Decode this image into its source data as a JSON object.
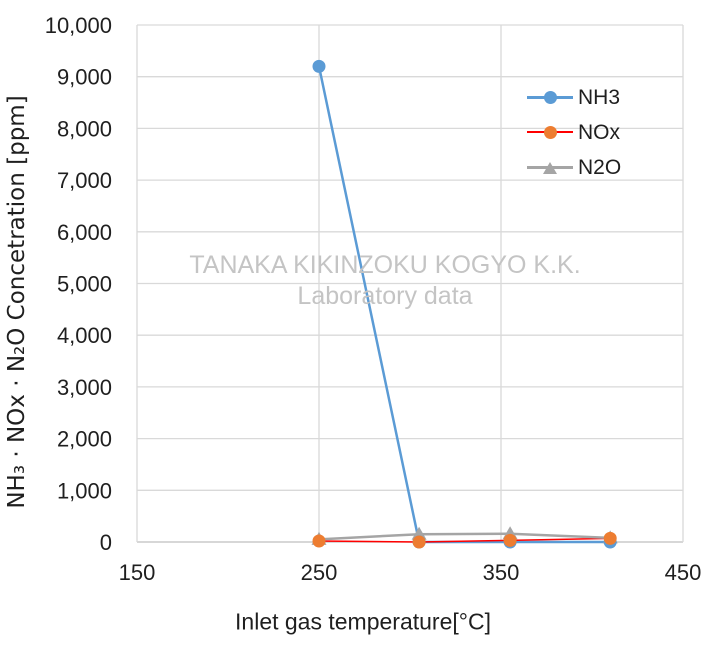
{
  "chart_data": {
    "type": "line",
    "title": "",
    "xlabel": "Inlet gas temperature[°C]",
    "ylabel": "NH₃ · NOx · N₂O Concetration [ppm]",
    "xlim": [
      150,
      450
    ],
    "ylim": [
      0,
      10000
    ],
    "grid": true,
    "legend_position": "inside-top-right",
    "x_ticks": [
      {
        "v": 150,
        "label": "150"
      },
      {
        "v": 250,
        "label": "250"
      },
      {
        "v": 350,
        "label": "350"
      },
      {
        "v": 450,
        "label": "450"
      }
    ],
    "y_ticks": [
      {
        "v": 0,
        "label": "0"
      },
      {
        "v": 1000,
        "label": "1,000"
      },
      {
        "v": 2000,
        "label": "2,000"
      },
      {
        "v": 3000,
        "label": "3,000"
      },
      {
        "v": 4000,
        "label": "4,000"
      },
      {
        "v": 5000,
        "label": "5,000"
      },
      {
        "v": 6000,
        "label": "6,000"
      },
      {
        "v": 7000,
        "label": "7,000"
      },
      {
        "v": 8000,
        "label": "8,000"
      },
      {
        "v": 9000,
        "label": "9,000"
      },
      {
        "v": 10000,
        "label": "10,000"
      }
    ],
    "x": [
      250,
      305,
      355,
      410
    ],
    "series": [
      {
        "name": "NH3",
        "values": [
          9200,
          0,
          0,
          0
        ],
        "marker": "circle",
        "line_color": "#5B9BD5",
        "marker_color": "#5B9BD5",
        "line_width": 2.5
      },
      {
        "name": "NOx",
        "values": [
          20,
          0,
          30,
          70
        ],
        "marker": "circle",
        "line_color": "#FF0000",
        "marker_color": "#ED7D31",
        "line_width": 1.5
      },
      {
        "name": "N2O",
        "values": [
          50,
          150,
          160,
          80
        ],
        "marker": "triangle",
        "line_color": "#A5A5A5",
        "marker_color": "#A5A5A5",
        "line_width": 2.5
      }
    ]
  },
  "watermark": {
    "line1": "TANAKA KIKINZOKU KOGYO K.K.",
    "line2": "Laboratory data"
  },
  "colors": {
    "grid": "#D9D9D9",
    "axis": "#BFBFBF",
    "text": "#1F1F1F",
    "watermark": "#C4C4C4"
  }
}
